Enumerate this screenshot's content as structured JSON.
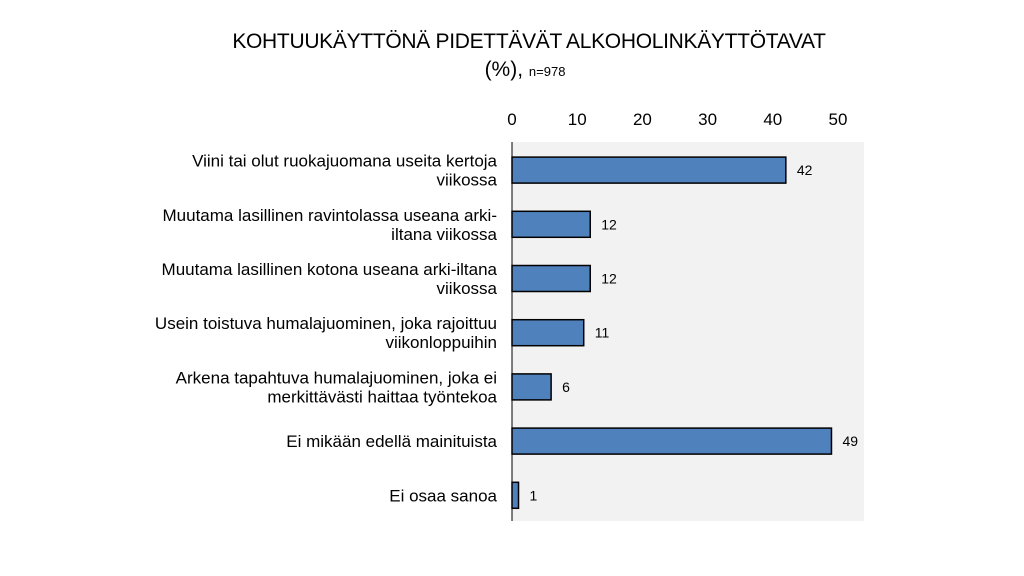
{
  "title": "KOHTUUKÄYTTÖNÄ PIDETTÄVÄT ALKOHOLINKÄYTTÖTAVAT",
  "subtitle_main": "(%),",
  "subtitle_n": "n=978",
  "colors": {
    "bar": "#4f81bd",
    "bar_edge": "#000000",
    "plot_bg": "#f2f2f2"
  },
  "chart_data": {
    "type": "bar",
    "orientation": "horizontal",
    "title": "KOHTUUKÄYTTÖNÄ PIDETTÄVÄT ALKOHOLINKÄYTTÖTAVAT",
    "categories": [
      [
        "Viini tai olut ruokajuomana useita kertoja",
        "viikossa"
      ],
      [
        "Muutama lasillinen ravintolassa useana arki-",
        "iltana viikossa"
      ],
      [
        "Muutama lasillinen kotona useana arki-iltana",
        "viikossa"
      ],
      [
        "Usein toistuva humalajuominen, joka rajoittuu",
        "viikonloppuihin"
      ],
      [
        "Arkena tapahtuva humalajuominen, joka ei",
        "merkittävästi haittaa työntekoa"
      ],
      [
        "Ei mikään edellä mainituista"
      ],
      [
        "Ei osaa sanoa"
      ]
    ],
    "values": [
      42,
      12,
      12,
      11,
      6,
      49,
      1
    ],
    "xlim": [
      0,
      50
    ],
    "ticks": [
      "0",
      "10",
      "20",
      "30",
      "40",
      "50"
    ],
    "axis_position": "top",
    "grid": false
  }
}
